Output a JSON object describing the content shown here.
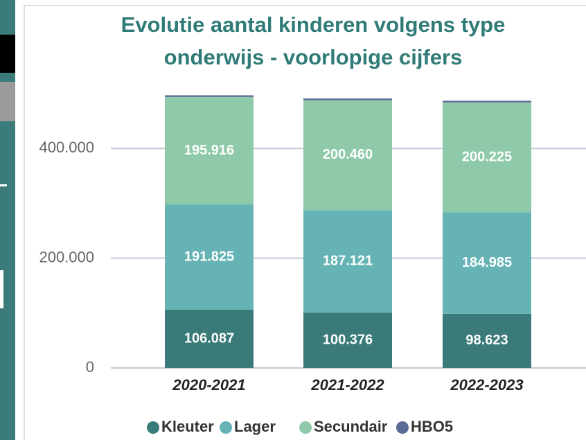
{
  "chart_data": {
    "type": "stacked_bar",
    "title": [
      "Evolutie aantal kinderen volgens type",
      "onderwijs - voorlopige cijfers"
    ],
    "categories": [
      "2020-2021",
      "2021-2022",
      "2022-2023"
    ],
    "series": [
      {
        "name": "Kleuter",
        "color": "#3a7b79",
        "values": [
          106087,
          100376,
          98623
        ],
        "value_labels": [
          "106.087",
          "100.376",
          "98.623"
        ]
      },
      {
        "name": "Lager",
        "color": "#65b3b5",
        "values": [
          191825,
          187121,
          184985
        ],
        "value_labels": [
          "191.825",
          "187.121",
          "184.985"
        ]
      },
      {
        "name": "Secundair",
        "color": "#8ecaa9",
        "values": [
          195916,
          200460,
          200225
        ],
        "value_labels": [
          "195.916",
          "200.460",
          "200.225"
        ]
      },
      {
        "name": "HBO5",
        "color": "#5b6b94",
        "values": [
          3000,
          3000,
          3000
        ]
      }
    ],
    "ylim": [
      0,
      500000
    ],
    "yticks": [
      0,
      {
        "value": 200000,
        "label": "200.000"
      },
      {
        "value": 400000,
        "label": "400.000"
      }
    ],
    "grid": true,
    "legend": "bottom"
  }
}
